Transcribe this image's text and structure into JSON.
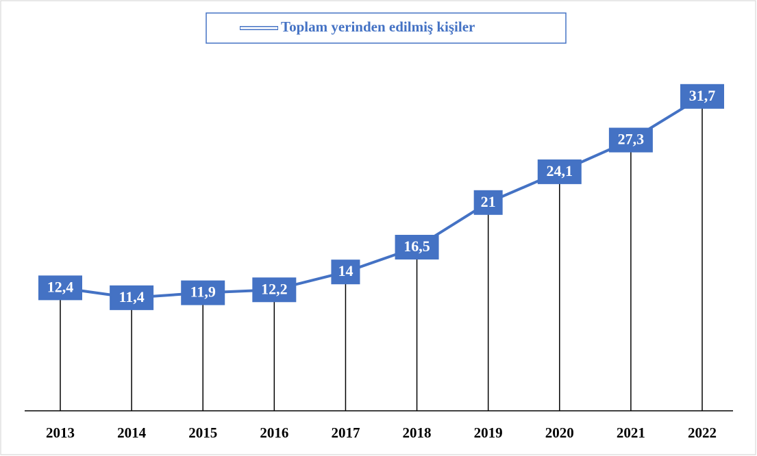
{
  "chart_data": {
    "type": "line",
    "categories": [
      "2013",
      "2014",
      "2015",
      "2016",
      "2017",
      "2018",
      "2019",
      "2020",
      "2021",
      "2022"
    ],
    "series": [
      {
        "name": "Toplam yerinden edilmiş kişiler",
        "color": "#4472c4",
        "values": [
          12.4,
          11.4,
          11.9,
          12.2,
          14,
          16.5,
          21,
          24.1,
          27.3,
          31.7
        ],
        "value_labels": [
          "12,4",
          "11,4",
          "11,9",
          "12,2",
          "14",
          "16,5",
          "21",
          "24,1",
          "27,3",
          "31,7"
        ]
      }
    ],
    "ylim": [
      0,
      35
    ],
    "drop_lines": true,
    "legend": "top"
  }
}
